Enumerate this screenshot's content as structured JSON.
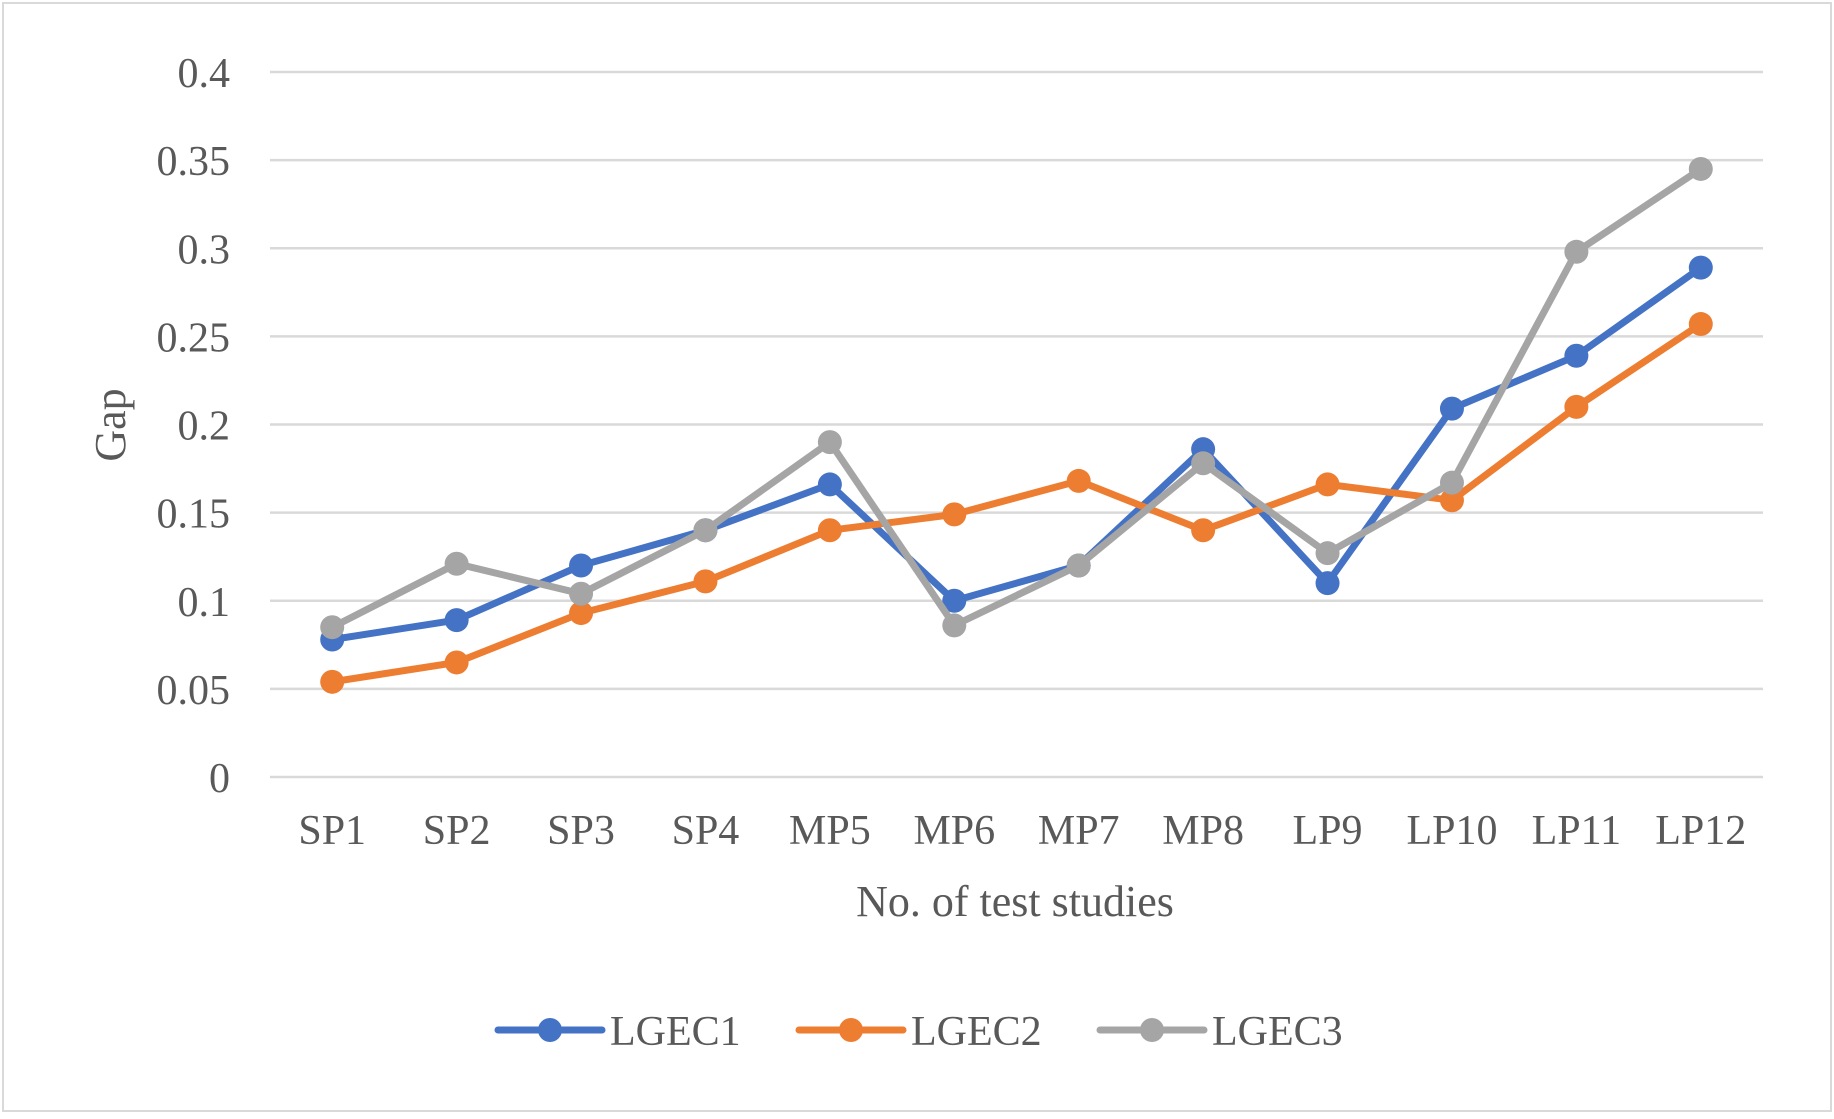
{
  "chart_data": {
    "type": "line",
    "title": "",
    "xlabel": "No. of test studies",
    "ylabel": "Gap",
    "ylim": [
      0,
      0.4
    ],
    "yticks": [
      "0",
      "0.05",
      "0.1",
      "0.15",
      "0.2",
      "0.25",
      "0.3",
      "0.35",
      "0.4"
    ],
    "grid": true,
    "legend_position": "bottom",
    "categories": [
      "SP1",
      "SP2",
      "SP3",
      "SP4",
      "MP5",
      "MP6",
      "MP7",
      "MP8",
      "LP9",
      "LP10",
      "LP11",
      "LP12"
    ],
    "series": [
      {
        "name": "LGEC1",
        "color": "#4472c4",
        "values": [
          0.078,
          0.089,
          0.12,
          0.14,
          0.166,
          0.1,
          0.12,
          0.186,
          0.11,
          0.209,
          0.239,
          0.289
        ]
      },
      {
        "name": "LGEC2",
        "color": "#ed7d31",
        "values": [
          0.054,
          0.065,
          0.093,
          0.111,
          0.14,
          0.149,
          0.168,
          0.14,
          0.166,
          0.157,
          0.21,
          0.257
        ]
      },
      {
        "name": "LGEC3",
        "color": "#a5a5a5",
        "values": [
          0.085,
          0.121,
          0.104,
          0.14,
          0.19,
          0.086,
          0.12,
          0.178,
          0.127,
          0.167,
          0.298,
          0.345
        ]
      }
    ]
  }
}
